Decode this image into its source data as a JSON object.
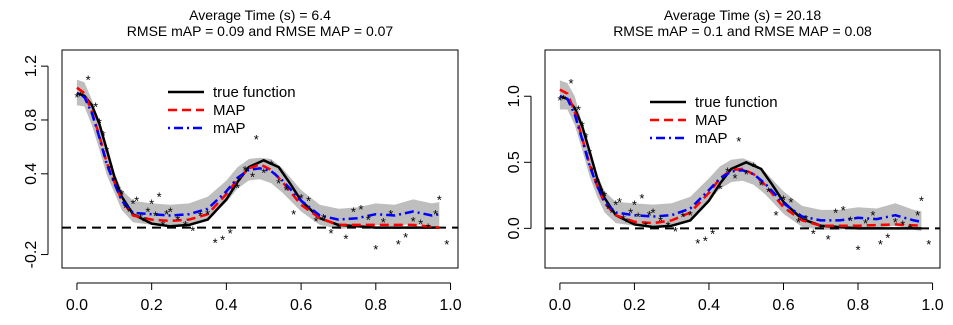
{
  "chart_data": [
    {
      "type": "line",
      "title": "Average Time (s) =  6.4",
      "subtitle": "RMSE mAP =  0.09 and RMSE MAP =  0.07",
      "xlabel": "",
      "ylabel": "",
      "xlim": [
        -0.04,
        1.02
      ],
      "ylim": [
        -0.3,
        1.32
      ],
      "x_ticks": [
        "0.0",
        "0.2",
        "0.4",
        "0.6",
        "0.8",
        "1.0"
      ],
      "y_ticks": [
        "-0.2",
        "0.4",
        "0.8",
        "1.2"
      ],
      "reference_line_y": 0,
      "legend": {
        "placement": "top-center",
        "entries": [
          {
            "label": "true function",
            "color": "#000000",
            "dash": "solid"
          },
          {
            "label": "MAP",
            "color": "#ff0000",
            "dash": "dashed"
          },
          {
            "label": "mAP",
            "color": "#0000ff",
            "dash": "dotdash"
          }
        ]
      },
      "series": [
        {
          "name": "true function",
          "color": "#000000",
          "x": [
            0.0,
            0.02,
            0.04,
            0.06,
            0.08,
            0.1,
            0.12,
            0.15,
            0.2,
            0.25,
            0.3,
            0.35,
            0.4,
            0.43,
            0.46,
            0.5,
            0.54,
            0.57,
            0.6,
            0.65,
            0.7,
            0.8,
            0.9,
            0.97
          ],
          "y": [
            1.0,
            0.98,
            0.91,
            0.77,
            0.58,
            0.38,
            0.23,
            0.1,
            0.03,
            0.01,
            0.02,
            0.06,
            0.21,
            0.34,
            0.45,
            0.5,
            0.45,
            0.33,
            0.2,
            0.07,
            0.02,
            0.0,
            0.0,
            0.0
          ]
        },
        {
          "name": "MAP",
          "color": "#ff0000",
          "x": [
            0.0,
            0.02,
            0.04,
            0.06,
            0.08,
            0.1,
            0.12,
            0.15,
            0.2,
            0.25,
            0.3,
            0.35,
            0.4,
            0.43,
            0.46,
            0.49,
            0.52,
            0.55,
            0.6,
            0.65,
            0.7,
            0.8,
            0.9,
            0.97
          ],
          "y": [
            1.04,
            1.0,
            0.86,
            0.68,
            0.48,
            0.34,
            0.2,
            0.09,
            0.06,
            0.05,
            0.06,
            0.1,
            0.25,
            0.36,
            0.44,
            0.47,
            0.43,
            0.34,
            0.17,
            0.07,
            0.02,
            0.02,
            0.02,
            0.0
          ]
        },
        {
          "name": "mAP",
          "color": "#0000ff",
          "x": [
            0.0,
            0.02,
            0.04,
            0.06,
            0.08,
            0.1,
            0.12,
            0.15,
            0.2,
            0.25,
            0.3,
            0.35,
            0.4,
            0.43,
            0.46,
            0.49,
            0.52,
            0.55,
            0.6,
            0.65,
            0.7,
            0.75,
            0.8,
            0.85,
            0.9,
            0.95,
            0.97
          ],
          "y": [
            1.0,
            0.97,
            0.85,
            0.67,
            0.47,
            0.33,
            0.2,
            0.11,
            0.1,
            0.09,
            0.1,
            0.14,
            0.27,
            0.37,
            0.43,
            0.44,
            0.42,
            0.35,
            0.2,
            0.09,
            0.06,
            0.07,
            0.1,
            0.09,
            0.12,
            0.09,
            0.1
          ]
        },
        {
          "name": "",
          "type": "band",
          "color": "#bebebe",
          "x": [
            0.0,
            0.02,
            0.04,
            0.06,
            0.08,
            0.1,
            0.12,
            0.15,
            0.2,
            0.25,
            0.3,
            0.35,
            0.4,
            0.43,
            0.46,
            0.49,
            0.52,
            0.55,
            0.6,
            0.65,
            0.7,
            0.75,
            0.8,
            0.85,
            0.9,
            0.95,
            0.97
          ],
          "lower": [
            0.91,
            0.9,
            0.76,
            0.58,
            0.39,
            0.26,
            0.13,
            0.04,
            0.02,
            0.01,
            0.02,
            0.06,
            0.19,
            0.29,
            0.35,
            0.36,
            0.33,
            0.26,
            0.12,
            0.02,
            -0.01,
            0.0,
            0.02,
            0.01,
            0.03,
            0.0,
            0.01
          ],
          "upper": [
            1.1,
            1.08,
            0.95,
            0.77,
            0.56,
            0.41,
            0.28,
            0.2,
            0.18,
            0.17,
            0.18,
            0.23,
            0.35,
            0.45,
            0.51,
            0.52,
            0.51,
            0.44,
            0.28,
            0.17,
            0.14,
            0.15,
            0.18,
            0.17,
            0.21,
            0.18,
            0.19
          ]
        },
        {
          "name": "",
          "type": "scatter",
          "marker": "*",
          "x": [
            0.0,
            0.01,
            0.03,
            0.05,
            0.06,
            0.07,
            0.08,
            0.09,
            0.1,
            0.11,
            0.12,
            0.13,
            0.14,
            0.15,
            0.16,
            0.17,
            0.18,
            0.19,
            0.2,
            0.21,
            0.22,
            0.23,
            0.24,
            0.25,
            0.27,
            0.29,
            0.31,
            0.33,
            0.35,
            0.37,
            0.39,
            0.41,
            0.43,
            0.45,
            0.47,
            0.48,
            0.5,
            0.52,
            0.54,
            0.56,
            0.58,
            0.6,
            0.62,
            0.64,
            0.66,
            0.68,
            0.7,
            0.72,
            0.74,
            0.76,
            0.78,
            0.8,
            0.82,
            0.84,
            0.86,
            0.88,
            0.9,
            0.92,
            0.94,
            0.96,
            0.97,
            0.99
          ],
          "y": [
            0.97,
            0.98,
            1.1,
            0.9,
            0.78,
            0.69,
            0.57,
            0.44,
            0.35,
            0.28,
            0.25,
            0.15,
            0.12,
            0.18,
            0.2,
            0.07,
            0.05,
            0.12,
            0.18,
            0.09,
            0.23,
            0.02,
            0.1,
            0.12,
            0.06,
            0.02,
            -0.02,
            0.09,
            0.1,
            -0.11,
            -0.09,
            -0.04,
            0.3,
            0.43,
            0.38,
            0.66,
            0.41,
            0.47,
            0.33,
            0.28,
            0.1,
            0.22,
            0.2,
            0.05,
            0.07,
            -0.04,
            0.0,
            -0.08,
            0.12,
            0.14,
            0.06,
            -0.16,
            0.04,
            0.1,
            -0.12,
            -0.07,
            0.05,
            0.03,
            0.0,
            0.1,
            0.21,
            -0.12
          ]
        }
      ]
    },
    {
      "type": "line",
      "title": "Average Time (s) =  20.18",
      "subtitle": "RMSE mAP =  0.1 and RMSE MAP =  0.08",
      "xlabel": "",
      "ylabel": "",
      "xlim": [
        -0.04,
        1.02
      ],
      "ylim": [
        -0.3,
        1.35
      ],
      "x_ticks": [
        "0.0",
        "0.2",
        "0.4",
        "0.6",
        "0.8",
        "1.0"
      ],
      "y_ticks": [
        "0.0",
        "0.5",
        "1.0"
      ],
      "reference_line_y": 0,
      "legend": {
        "placement": "top-center",
        "entries": [
          {
            "label": "true function",
            "color": "#000000",
            "dash": "solid"
          },
          {
            "label": "MAP",
            "color": "#ff0000",
            "dash": "dashed"
          },
          {
            "label": "mAP",
            "color": "#0000ff",
            "dash": "dotdash"
          }
        ]
      },
      "series": [
        {
          "name": "true function",
          "color": "#000000",
          "x": [
            0.0,
            0.02,
            0.04,
            0.06,
            0.08,
            0.1,
            0.12,
            0.15,
            0.2,
            0.25,
            0.3,
            0.35,
            0.4,
            0.43,
            0.46,
            0.5,
            0.54,
            0.57,
            0.6,
            0.65,
            0.7,
            0.8,
            0.9,
            0.97
          ],
          "y": [
            1.0,
            0.98,
            0.91,
            0.77,
            0.58,
            0.38,
            0.23,
            0.1,
            0.03,
            0.01,
            0.02,
            0.06,
            0.21,
            0.34,
            0.45,
            0.5,
            0.45,
            0.33,
            0.2,
            0.07,
            0.02,
            0.0,
            0.0,
            0.0
          ]
        },
        {
          "name": "MAP",
          "color": "#ff0000",
          "x": [
            0.0,
            0.02,
            0.04,
            0.06,
            0.08,
            0.1,
            0.12,
            0.15,
            0.2,
            0.25,
            0.3,
            0.35,
            0.4,
            0.43,
            0.46,
            0.49,
            0.52,
            0.55,
            0.6,
            0.65,
            0.7,
            0.8,
            0.9,
            0.97
          ],
          "y": [
            1.05,
            1.02,
            0.88,
            0.68,
            0.48,
            0.32,
            0.19,
            0.1,
            0.05,
            0.04,
            0.06,
            0.12,
            0.27,
            0.38,
            0.44,
            0.45,
            0.41,
            0.33,
            0.16,
            0.06,
            0.02,
            0.02,
            0.03,
            0.02
          ]
        },
        {
          "name": "mAP",
          "color": "#0000ff",
          "x": [
            0.0,
            0.02,
            0.04,
            0.06,
            0.08,
            0.1,
            0.12,
            0.15,
            0.2,
            0.25,
            0.3,
            0.35,
            0.4,
            0.43,
            0.46,
            0.49,
            0.52,
            0.55,
            0.6,
            0.65,
            0.7,
            0.75,
            0.8,
            0.85,
            0.9,
            0.95,
            0.97
          ],
          "y": [
            1.0,
            0.98,
            0.86,
            0.67,
            0.47,
            0.32,
            0.2,
            0.12,
            0.1,
            0.09,
            0.1,
            0.15,
            0.29,
            0.38,
            0.43,
            0.44,
            0.41,
            0.34,
            0.19,
            0.09,
            0.06,
            0.06,
            0.08,
            0.07,
            0.1,
            0.06,
            0.05
          ]
        },
        {
          "name": "",
          "type": "band",
          "color": "#bebebe",
          "x": [
            0.0,
            0.02,
            0.04,
            0.06,
            0.08,
            0.1,
            0.12,
            0.15,
            0.2,
            0.25,
            0.3,
            0.35,
            0.4,
            0.43,
            0.46,
            0.49,
            0.52,
            0.55,
            0.6,
            0.65,
            0.7,
            0.75,
            0.8,
            0.85,
            0.9,
            0.95,
            0.97
          ],
          "lower": [
            0.9,
            0.9,
            0.78,
            0.59,
            0.39,
            0.24,
            0.12,
            0.04,
            0.02,
            0.01,
            0.02,
            0.07,
            0.21,
            0.3,
            0.35,
            0.36,
            0.33,
            0.26,
            0.11,
            0.01,
            -0.01,
            -0.01,
            0.01,
            0.0,
            0.02,
            -0.01,
            -0.02
          ],
          "upper": [
            1.12,
            1.1,
            1.0,
            0.79,
            0.57,
            0.41,
            0.28,
            0.2,
            0.19,
            0.18,
            0.19,
            0.24,
            0.38,
            0.47,
            0.52,
            0.53,
            0.5,
            0.43,
            0.28,
            0.17,
            0.14,
            0.14,
            0.16,
            0.15,
            0.19,
            0.14,
            0.13
          ]
        },
        {
          "name": "",
          "type": "scatter",
          "marker": "*",
          "x": [
            0.0,
            0.01,
            0.03,
            0.05,
            0.06,
            0.07,
            0.08,
            0.09,
            0.1,
            0.11,
            0.12,
            0.13,
            0.14,
            0.15,
            0.16,
            0.17,
            0.18,
            0.19,
            0.2,
            0.21,
            0.22,
            0.23,
            0.24,
            0.25,
            0.27,
            0.29,
            0.31,
            0.33,
            0.35,
            0.37,
            0.39,
            0.41,
            0.43,
            0.45,
            0.47,
            0.48,
            0.5,
            0.52,
            0.54,
            0.56,
            0.58,
            0.6,
            0.62,
            0.64,
            0.66,
            0.68,
            0.7,
            0.72,
            0.74,
            0.76,
            0.78,
            0.8,
            0.82,
            0.84,
            0.86,
            0.88,
            0.9,
            0.92,
            0.94,
            0.96,
            0.97,
            0.99
          ],
          "y": [
            0.97,
            0.98,
            1.1,
            0.9,
            0.78,
            0.69,
            0.57,
            0.44,
            0.35,
            0.28,
            0.25,
            0.15,
            0.12,
            0.18,
            0.2,
            0.07,
            0.05,
            0.12,
            0.18,
            0.09,
            0.23,
            0.02,
            0.1,
            0.12,
            0.06,
            0.02,
            -0.02,
            0.09,
            0.1,
            -0.11,
            -0.09,
            -0.04,
            0.3,
            0.43,
            0.38,
            0.66,
            0.41,
            0.47,
            0.33,
            0.28,
            0.1,
            0.22,
            0.2,
            0.05,
            0.07,
            -0.04,
            0.0,
            -0.08,
            0.12,
            0.14,
            0.06,
            -0.16,
            0.04,
            0.1,
            -0.12,
            -0.07,
            0.05,
            0.03,
            0.0,
            0.1,
            0.21,
            -0.12
          ]
        }
      ]
    }
  ]
}
